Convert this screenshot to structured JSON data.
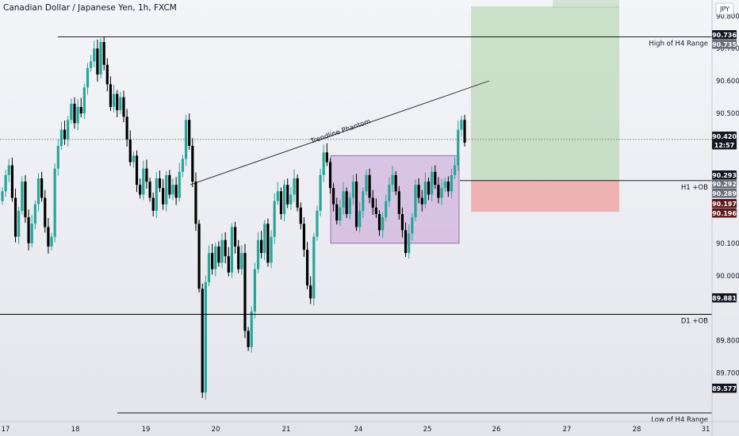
{
  "title": "Canadian Dollar / Japanese Yen, 1h, FXCM",
  "currency_badge": "JPY",
  "colors": {
    "up": "#26a69a",
    "down": "#000000",
    "profit_zone": "#a9cfa3",
    "loss_zone": "#ef9a9a",
    "range_box": "#c9a6d9",
    "line": "#000000"
  },
  "chart_data": {
    "type": "candlestick",
    "ylim": [
      89.55,
      90.83
    ],
    "x_tick_labels": [
      "17",
      "18",
      "19",
      "20",
      "21",
      "24",
      "25",
      "26",
      "27",
      "28",
      "31"
    ],
    "y_ticks": [
      "90.800",
      "90.700",
      "90.600",
      "90.500",
      "90.400",
      "90.300",
      "90.200",
      "90.100",
      "90.000",
      "89.900",
      "89.800",
      "89.700",
      "89.600",
      "89.500"
    ],
    "ohlc_closes": [
      90.26,
      90.31,
      90.34,
      90.24,
      90.12,
      90.2,
      90.29,
      90.18,
      90.1,
      90.16,
      90.22,
      90.3,
      90.24,
      90.15,
      90.09,
      90.12,
      90.33,
      90.4,
      90.45,
      90.42,
      90.48,
      90.53,
      90.47,
      90.52,
      90.5,
      90.58,
      90.64,
      90.66,
      90.7,
      90.62,
      90.72,
      90.65,
      90.59,
      90.52,
      90.56,
      90.51,
      90.55,
      90.49,
      90.42,
      90.35,
      90.37,
      90.28,
      90.25,
      90.33,
      90.29,
      90.24,
      90.2,
      90.3,
      90.27,
      90.22,
      90.31,
      90.25,
      90.28,
      90.24,
      90.32,
      90.36,
      90.48,
      90.4,
      90.29,
      90.16,
      89.96,
      89.64,
      89.98,
      90.07,
      90.02,
      90.09,
      90.04,
      90.11,
      90.06,
      90.01,
      90.15,
      90.09,
      90.02,
      90.07,
      89.83,
      89.78,
      89.89,
      90.02,
      90.11,
      90.07,
      90.16,
      90.04,
      90.12,
      90.23,
      90.26,
      90.19,
      90.28,
      90.22,
      90.25,
      90.3,
      90.21,
      90.16,
      90.08,
      89.97,
      89.93,
      90.12,
      90.2,
      90.31,
      90.38,
      90.35,
      90.27,
      90.22,
      90.17,
      90.21,
      90.26,
      90.19,
      90.24,
      90.29,
      90.15,
      90.2,
      90.26,
      90.31,
      90.24,
      90.21,
      90.19,
      90.14,
      90.18,
      90.23,
      90.28,
      90.31,
      90.26,
      90.19,
      90.14,
      90.07,
      90.13,
      90.18,
      90.28,
      90.24,
      90.22,
      90.29,
      90.25,
      90.32,
      90.28,
      90.24,
      90.27,
      90.29,
      90.26,
      90.31,
      90.34,
      90.45,
      90.48,
      90.41
    ],
    "horizontal_levels": [
      {
        "label": "High of H4 Range",
        "value": 90.736
      },
      {
        "label": "H1 +OB",
        "value": 90.293
      },
      {
        "label": "D1 +OB",
        "value": 89.881
      },
      {
        "label": "Low of H4 Range",
        "value": 89.577
      }
    ],
    "price_tags": [
      {
        "text": "90.736",
        "value": 90.736,
        "style": "dark"
      },
      {
        "text": "90.735",
        "value": 90.735,
        "style": "gray"
      },
      {
        "text": "90.420",
        "value": 90.42,
        "style": "dark"
      },
      {
        "text": "12:57",
        "value": 90.42,
        "style": "dark"
      },
      {
        "text": "90.293",
        "value": 90.293,
        "style": "dark"
      },
      {
        "text": "90.292",
        "value": 90.292,
        "style": "gray"
      },
      {
        "text": "90.289",
        "value": 90.289,
        "style": "gray"
      },
      {
        "text": "90.197",
        "value": 90.197,
        "style": "red"
      },
      {
        "text": "90.196",
        "value": 90.196,
        "style": "red"
      },
      {
        "text": "89.881",
        "value": 89.881,
        "style": "dark"
      },
      {
        "text": "89.577",
        "value": 89.577,
        "style": "dark"
      }
    ],
    "trendline_label": "Trendline Phantom",
    "range_box": {
      "top": 90.37,
      "bottom": 90.1
    },
    "position": {
      "entry": 90.293,
      "target": 90.83,
      "stop": 90.197
    }
  }
}
